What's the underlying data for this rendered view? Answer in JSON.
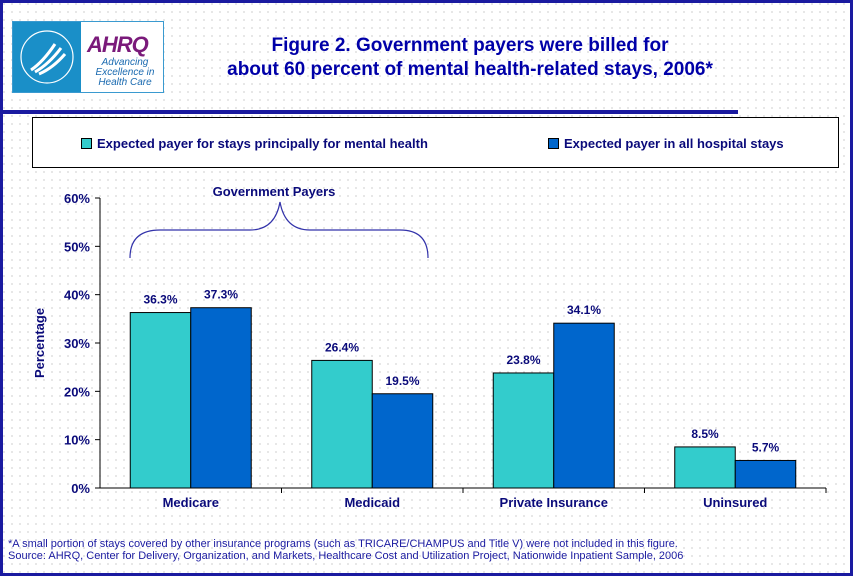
{
  "logo": {
    "text": "AHRQ",
    "tagline": "Advancing Excellence in Health Care"
  },
  "title_line1": "Figure 2. Government payers were billed for",
  "title_line2": "about 60 percent of mental health-related stays, 2006*",
  "colors": {
    "series1": "#33CCCC",
    "series2": "#0066CC",
    "text": "#0000A8"
  },
  "chart_data": {
    "type": "bar",
    "categories": [
      "Medicare",
      "Medicaid",
      "Private Insurance",
      "Uninsured"
    ],
    "series": [
      {
        "name": "Expected payer for stays principally for mental health",
        "values": [
          36.3,
          26.4,
          23.8,
          8.5
        ],
        "labels": [
          "36.3%",
          "26.4%",
          "23.8%",
          "8.5%"
        ]
      },
      {
        "name": "Expected payer in all hospital stays",
        "values": [
          37.3,
          19.5,
          34.1,
          5.7
        ],
        "labels": [
          "37.3%",
          "19.5%",
          "34.1%",
          "5.7%"
        ]
      }
    ],
    "ylabel": "Percentage",
    "ylim": [
      0,
      60
    ],
    "yticks": [
      "0%",
      "10%",
      "20%",
      "30%",
      "40%",
      "50%",
      "60%"
    ],
    "legend": "top",
    "grid": false,
    "annotation": "Government Payers"
  },
  "footnote": "*A small portion of stays covered by other insurance programs (such as TRICARE/CHAMPUS and Title V) were not included in this figure.",
  "source": "Source: AHRQ, Center for Delivery, Organization, and Markets, Healthcare Cost and Utilization Project, Nationwide Inpatient Sample, 2006"
}
